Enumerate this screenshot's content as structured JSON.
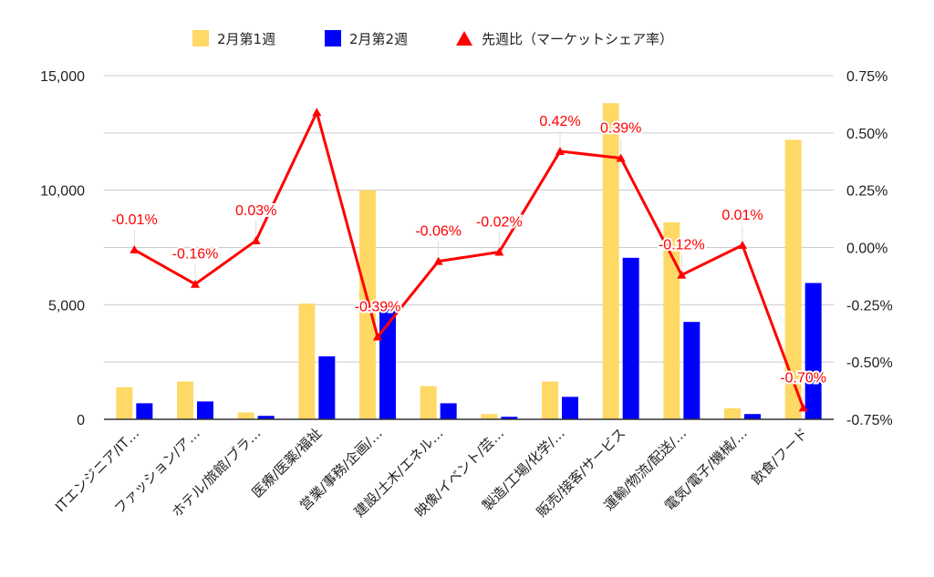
{
  "chart_data": {
    "type": "bar+line",
    "title": "",
    "categories": [
      "ITエンジニア/IT…",
      "ファッション/ア…",
      "ホテル/旅館/ブラ…",
      "医療/医薬/福祉",
      "営業/事務/企画/…",
      "建設/土木/エネル…",
      "映像/イベント/芸…",
      "製造/工場/化学/…",
      "販売/接客/サービス",
      "運輸/物流/配送/…",
      "電気/電子/機械/…",
      "飲食/フード"
    ],
    "series": [
      {
        "name": "2月第1週",
        "type": "bar",
        "axis": "left",
        "color": "#FFD966",
        "values": [
          1400,
          1650,
          300,
          5050,
          10000,
          1450,
          230,
          1650,
          13800,
          8600,
          480,
          12200
        ]
      },
      {
        "name": "2月第2週",
        "type": "bar",
        "axis": "left",
        "color": "#0000FF",
        "values": [
          700,
          780,
          150,
          2750,
          4850,
          700,
          110,
          980,
          7050,
          4250,
          230,
          5950
        ]
      },
      {
        "name": "先週比（マーケットシェア率）",
        "type": "line",
        "axis": "right",
        "color": "#FF0000",
        "values": [
          -0.0001,
          -0.0016,
          0.0003,
          0.0059,
          -0.0039,
          -0.0006,
          -0.0002,
          0.0042,
          0.0039,
          -0.0012,
          0.0001,
          -0.007
        ],
        "labels": [
          "-0.01%",
          "-0.16%",
          "0.03%",
          "",
          "-0.39%",
          "-0.06%",
          "-0.02%",
          "0.42%",
          "0.39%",
          "-0.12%",
          "0.01%",
          "-0.70%"
        ]
      }
    ],
    "y_left": {
      "min": 0,
      "max": 15000,
      "ticks": [
        "0",
        "5,000",
        "10,000",
        "15,000"
      ]
    },
    "y_right": {
      "min": -0.0075,
      "max": 0.0075,
      "ticks": [
        "-0.75%",
        "-0.50%",
        "-0.25%",
        "0.00%",
        "0.25%",
        "0.50%",
        "0.75%"
      ]
    },
    "grid": true,
    "legend_position": "top"
  }
}
